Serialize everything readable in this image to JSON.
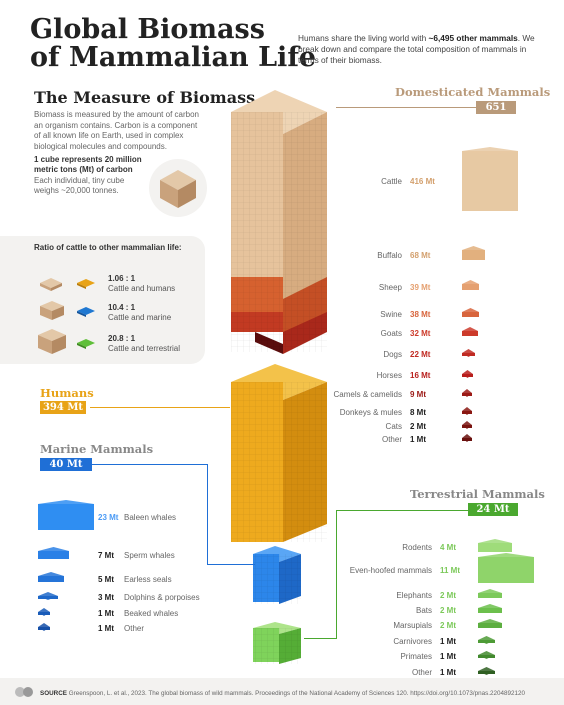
{
  "title": {
    "line1": "Global Biomass",
    "line2": "of Mammalian Life"
  },
  "intro": {
    "pre": "Humans share the living world with ",
    "highlight": "~6,495 other mammals",
    "post": ". We break down and compare the total composition of mammals in terms of their biomass."
  },
  "measure": {
    "heading": "The Measure of Biomass",
    "paragraph": "Biomass is measured by the amount of carbon an organism contains. Carbon is a component of all known life on Earth, used in complex biological molecules and compounds.",
    "cube_note": "1 cube represents 20 million metric tons (Mt) of carbon",
    "cube_note2": "Each individual, tiny cube weighs ~20,000 tonnes."
  },
  "ratios": {
    "title": "Ratio of cattle to other mammalian life:",
    "items": [
      {
        "ratio": "1.06 : 1",
        "label": "Cattle and humans",
        "color": "#e8a317"
      },
      {
        "ratio": "10.4 : 1",
        "label": "Cattle and marine",
        "color": "#1f78d1"
      },
      {
        "ratio": "20.8 : 1",
        "label": "Cattle and terrestrial",
        "color": "#5fbf3a"
      }
    ]
  },
  "colors": {
    "domestic": "#b99a7a",
    "humans": "#e8a317",
    "marine": "#1f6fd6",
    "terrestrial": "#4aa82f"
  },
  "chart_data": {
    "type": "bar",
    "title": "Global Biomass of Mammalian Life",
    "unit": "Mt of carbon",
    "groups": [
      {
        "name": "Domesticated Mammals",
        "total": "651 Mt",
        "categories": [
          "Cattle",
          "Buffalo",
          "Sheep",
          "Swine",
          "Goats",
          "Dogs",
          "Horses",
          "Camels & camelids",
          "Donkeys & mules",
          "Cats",
          "Other"
        ],
        "values": [
          416,
          68,
          39,
          38,
          32,
          22,
          16,
          9,
          8,
          2,
          1
        ],
        "colors": [
          "#e7c9a3",
          "#e2b07e",
          "#e5a070",
          "#d8653d",
          "#cc3b2b",
          "#c02a22",
          "#b81f1c",
          "#9c1a16",
          "#8a1712",
          "#7a1410",
          "#6a110e"
        ]
      },
      {
        "name": "Humans",
        "total": "394 Mt",
        "categories": [
          "Humans"
        ],
        "values": [
          394
        ],
        "colors": [
          "#e8a317"
        ]
      },
      {
        "name": "Marine Mammals",
        "total": "40 Mt",
        "categories": [
          "Baleen whales",
          "Sperm whales",
          "Earless seals",
          "Dolphins & porpoises",
          "Beaked whales",
          "Other"
        ],
        "values": [
          23,
          7,
          5,
          3,
          1,
          1
        ],
        "colors": [
          "#2f8ef2",
          "#2a80e6",
          "#2574d8",
          "#1f68c9",
          "#1a5cb8",
          "#1650a8"
        ]
      },
      {
        "name": "Terrestrial Mammals",
        "total": "24 Mt",
        "categories": [
          "Rodents",
          "Even-hoofed mammals",
          "Elephants",
          "Bats",
          "Marsupials",
          "Carnivores",
          "Primates",
          "Other"
        ],
        "values": [
          4,
          11,
          2,
          2,
          2,
          1,
          1,
          1
        ],
        "colors": [
          "#9fdc7a",
          "#8fd46a",
          "#7cc95a",
          "#6cbf4c",
          "#5cae40",
          "#4e9b36",
          "#42892e",
          "#2f5f22"
        ]
      }
    ]
  },
  "footer": {
    "label": "SOURCE",
    "text": "Greenspoon, L. et al., 2023. The global biomass of wild mammals. Proceedings of the National Academy of Sciences 120. https://doi.org/10.1073/pnas.2204892120"
  }
}
